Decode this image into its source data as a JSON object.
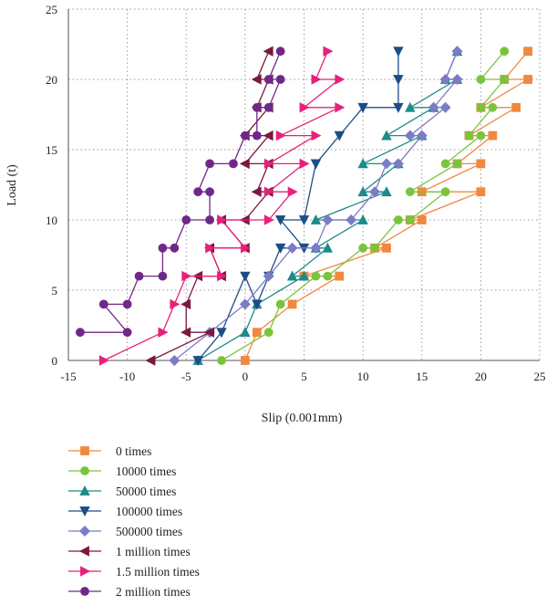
{
  "chart_data": {
    "type": "line",
    "xlabel": "Slip (0.001mm)",
    "ylabel": "Load (t)",
    "xlim": [
      -15,
      25
    ],
    "ylim": [
      0,
      25
    ],
    "xticks": [
      -15,
      -10,
      -5,
      0,
      5,
      10,
      15,
      20,
      25
    ],
    "yticks": [
      0,
      5,
      10,
      15,
      20,
      25
    ],
    "grid": "dotted",
    "legend_position": "bottom-left",
    "series": [
      {
        "name": "0 times",
        "color": "#f08840",
        "marker": "square",
        "points": [
          [
            0,
            0
          ],
          [
            1,
            2
          ],
          [
            4,
            4
          ],
          [
            8,
            6
          ],
          [
            5,
            6
          ],
          [
            12,
            8
          ],
          [
            11,
            8
          ],
          [
            15,
            10
          ],
          [
            14,
            10
          ],
          [
            20,
            12
          ],
          [
            15,
            12
          ],
          [
            20,
            14
          ],
          [
            18,
            14
          ],
          [
            21,
            16
          ],
          [
            19,
            16
          ],
          [
            23,
            18
          ],
          [
            20,
            18
          ],
          [
            24,
            20
          ],
          [
            22,
            20
          ],
          [
            24,
            22
          ]
        ]
      },
      {
        "name": "10000 times",
        "color": "#7ac43c",
        "marker": "circle",
        "points": [
          [
            -2,
            0
          ],
          [
            2,
            2
          ],
          [
            3,
            4
          ],
          [
            6,
            6
          ],
          [
            7,
            6
          ],
          [
            10,
            8
          ],
          [
            11,
            8
          ],
          [
            13,
            10
          ],
          [
            14,
            10
          ],
          [
            17,
            12
          ],
          [
            14,
            12
          ],
          [
            18,
            14
          ],
          [
            17,
            14
          ],
          [
            20,
            16
          ],
          [
            19,
            16
          ],
          [
            21,
            18
          ],
          [
            20,
            18
          ],
          [
            22,
            20
          ],
          [
            20,
            20
          ],
          [
            22,
            22
          ]
        ]
      },
      {
        "name": "50000 times",
        "color": "#1e8a8a",
        "marker": "triangle-up",
        "points": [
          [
            -4,
            0
          ],
          [
            0,
            2
          ],
          [
            1,
            4
          ],
          [
            5,
            6
          ],
          [
            4,
            6
          ],
          [
            7,
            8
          ],
          [
            6,
            8
          ],
          [
            10,
            10
          ],
          [
            6,
            10
          ],
          [
            12,
            12
          ],
          [
            10,
            12
          ],
          [
            13,
            14
          ],
          [
            10,
            14
          ],
          [
            15,
            16
          ],
          [
            12,
            16
          ],
          [
            16,
            18
          ],
          [
            14,
            18
          ],
          [
            18,
            20
          ],
          [
            17,
            20
          ],
          [
            18,
            22
          ]
        ]
      },
      {
        "name": "100000 times",
        "color": "#1c4e86",
        "marker": "triangle-down",
        "points": [
          [
            -4,
            0
          ],
          [
            -2,
            2
          ],
          [
            0,
            6
          ],
          [
            1,
            4
          ],
          [
            2,
            6
          ],
          [
            3,
            8
          ],
          [
            5,
            8
          ],
          [
            3,
            10
          ],
          [
            5,
            10
          ],
          [
            6,
            14
          ],
          [
            8,
            16
          ],
          [
            10,
            18
          ],
          [
            13,
            18
          ],
          [
            13,
            20
          ],
          [
            13,
            22
          ]
        ]
      },
      {
        "name": "500000 times",
        "color": "#7a7cc4",
        "marker": "diamond",
        "points": [
          [
            -6,
            0
          ],
          [
            -3,
            2
          ],
          [
            0,
            4
          ],
          [
            2,
            6
          ],
          [
            4,
            8
          ],
          [
            6,
            8
          ],
          [
            7,
            10
          ],
          [
            9,
            10
          ],
          [
            11,
            12
          ],
          [
            12,
            14
          ],
          [
            13,
            14
          ],
          [
            15,
            16
          ],
          [
            14,
            16
          ],
          [
            17,
            18
          ],
          [
            16,
            18
          ],
          [
            18,
            20
          ],
          [
            17,
            20
          ],
          [
            18,
            22
          ]
        ]
      },
      {
        "name": "1 million times",
        "color": "#7a1840",
        "marker": "triangle-left",
        "points": [
          [
            -8,
            0
          ],
          [
            -3,
            2
          ],
          [
            -5,
            2
          ],
          [
            -5,
            4
          ],
          [
            -4,
            6
          ],
          [
            -2,
            6
          ],
          [
            -3,
            8
          ],
          [
            0,
            8
          ],
          [
            -2,
            10
          ],
          [
            0,
            10
          ],
          [
            2,
            12
          ],
          [
            1,
            12
          ],
          [
            2,
            14
          ],
          [
            0,
            14
          ],
          [
            2,
            16
          ],
          [
            0,
            16
          ],
          [
            2,
            18
          ],
          [
            1,
            18
          ],
          [
            2,
            20
          ],
          [
            1,
            20
          ],
          [
            2,
            22
          ]
        ]
      },
      {
        "name": "1.5 million times",
        "color": "#e8207a",
        "marker": "triangle-right",
        "points": [
          [
            -12,
            0
          ],
          [
            -7,
            2
          ],
          [
            -6,
            4
          ],
          [
            -5,
            6
          ],
          [
            -2,
            6
          ],
          [
            -3,
            8
          ],
          [
            0,
            8
          ],
          [
            -2,
            10
          ],
          [
            2,
            10
          ],
          [
            4,
            12
          ],
          [
            2,
            12
          ],
          [
            5,
            14
          ],
          [
            2,
            14
          ],
          [
            6,
            16
          ],
          [
            3,
            16
          ],
          [
            8,
            18
          ],
          [
            5,
            18
          ],
          [
            8,
            20
          ],
          [
            6,
            20
          ],
          [
            7,
            22
          ]
        ]
      },
      {
        "name": "2 million times",
        "color": "#702888",
        "marker": "circle",
        "points": [
          [
            -14,
            2
          ],
          [
            -10,
            2
          ],
          [
            -12,
            4
          ],
          [
            -10,
            4
          ],
          [
            -9,
            6
          ],
          [
            -7,
            6
          ],
          [
            -7,
            8
          ],
          [
            -6,
            8
          ],
          [
            -5,
            10
          ],
          [
            -3,
            10
          ],
          [
            -3,
            12
          ],
          [
            -4,
            12
          ],
          [
            -3,
            14
          ],
          [
            -1,
            14
          ],
          [
            0,
            16
          ],
          [
            1,
            16
          ],
          [
            1,
            18
          ],
          [
            2,
            18
          ],
          [
            3,
            20
          ],
          [
            2,
            20
          ],
          [
            3,
            22
          ]
        ]
      }
    ]
  }
}
